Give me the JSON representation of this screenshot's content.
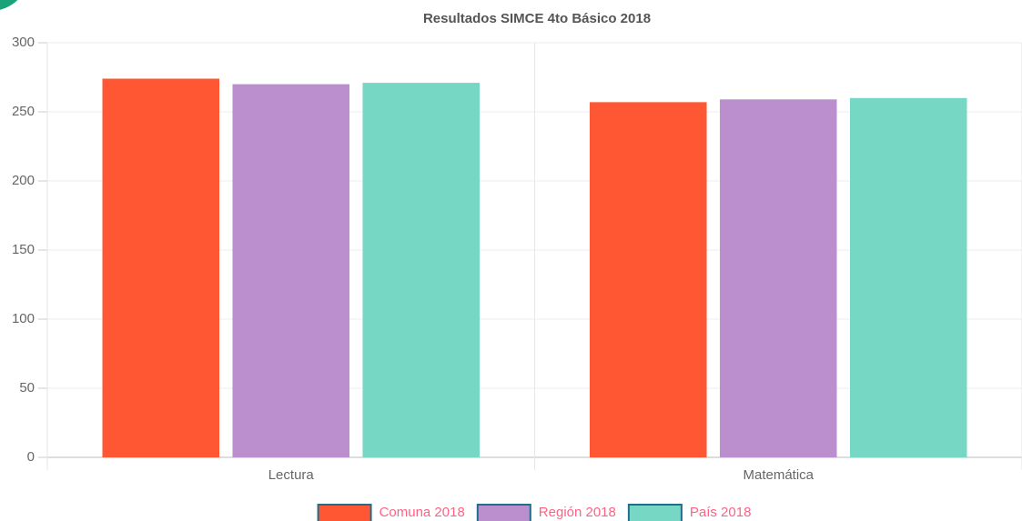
{
  "chart_data": {
    "type": "bar",
    "title": "Resultados SIMCE 4to Básico 2018",
    "categories": [
      "Lectura",
      "Matemática"
    ],
    "series": [
      {
        "name": "Comuna 2018",
        "color": "#ff5733",
        "values": [
          274,
          257
        ]
      },
      {
        "name": "Región 2018",
        "color": "#bb8fce",
        "values": [
          270,
          259
        ]
      },
      {
        "name": "País 2018",
        "color": "#76d7c4",
        "values": [
          271,
          260
        ]
      }
    ],
    "ylim": [
      0,
      300
    ],
    "yticks": [
      0,
      50,
      100,
      150,
      200,
      250,
      300
    ],
    "grid": true,
    "legend": "bottom"
  }
}
